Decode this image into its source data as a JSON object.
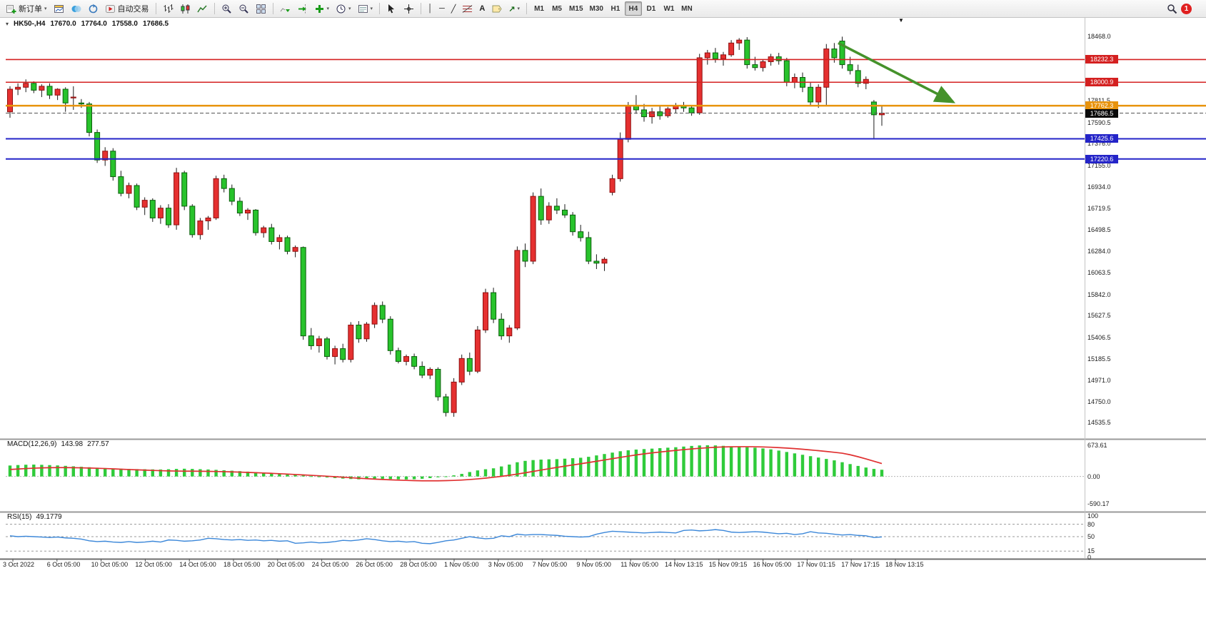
{
  "toolbar": {
    "new_order_label": "新订单",
    "auto_trading_label": "自动交易",
    "timeframes": [
      "M1",
      "M5",
      "M15",
      "M30",
      "H1",
      "H4",
      "D1",
      "W1",
      "MN"
    ],
    "active_timeframe": "H4",
    "notification_count": "1"
  },
  "icons": {
    "dropdown_caret": "▾",
    "scroll_marker": "▼",
    "collapse_caret": "▾",
    "vline_tool": "│",
    "hline_tool": "─",
    "trendline_tool": "╱",
    "text_tool": "A",
    "arrow_tool": "↗"
  },
  "symbol_header": {
    "symbol_period": "HK50-,H4",
    "open": "17670.0",
    "high": "17764.0",
    "low": "17558.0",
    "close": "17686.5"
  },
  "indicators": {
    "macd": {
      "name": "MACD(12,26,9)",
      "value_main": "143.98",
      "value_signal": "277.57"
    },
    "rsi": {
      "name": "RSI(15)",
      "value": "49.1779"
    }
  },
  "colors": {
    "bull": "#e53030",
    "bear": "#28c32c",
    "wick": "#1b1b1b",
    "macd_hist": "#2fcb3a",
    "macd_signal": "#e03030",
    "rsi_line": "#3b87d9",
    "arrow_green": "#45922b"
  },
  "chart_data": [
    {
      "type": "candlestick",
      "symbol": "HK50-",
      "period": "H4",
      "color_convention": "red = up, green = down",
      "last_bar": {
        "open": 17670.0,
        "high": 17764.0,
        "low": 17558.0,
        "close": 17686.5
      },
      "y_axis_ticks": [
        "18468.0",
        "17811.5",
        "17590.5",
        "17376.0",
        "17155.0",
        "16934.0",
        "16719.5",
        "16498.5",
        "16284.0",
        "16063.5",
        "15842.0",
        "15627.5",
        "15406.5",
        "15185.5",
        "14971.0",
        "14750.0",
        "14535.5"
      ],
      "price_lines": [
        {
          "label": "18232.3",
          "price": 18232.3,
          "line_color": "#d42020",
          "badge_bg": "#d42020",
          "width": 1.6,
          "dashed": false
        },
        {
          "label": "18000.9",
          "price": 18000.9,
          "line_color": "#d42020",
          "badge_bg": "#d42020",
          "width": 1.6,
          "dashed": false
        },
        {
          "label": "17762.3",
          "price": 17762.3,
          "line_color": "#e8930c",
          "badge_bg": "#e8930c",
          "width": 2.4,
          "dashed": false
        },
        {
          "label": "17686.5",
          "price": 17686.5,
          "line_color": "#555555",
          "badge_bg": "#0a0a0a",
          "width": 1,
          "dashed": true
        },
        {
          "label": "17425.6",
          "price": 17425.6,
          "line_color": "#2424c8",
          "badge_bg": "#2424c8",
          "width": 2,
          "dashed": false
        },
        {
          "label": "17220.6",
          "price": 17220.6,
          "line_color": "#2424c8",
          "badge_bg": "#2424c8",
          "width": 2,
          "dashed": false
        }
      ],
      "x_labels": [
        "3 Oct 2022",
        "6 Oct 05:00",
        "10 Oct 05:00",
        "12 Oct 05:00",
        "14 Oct 05:00",
        "18 Oct 05:00",
        "20 Oct 05:00",
        "24 Oct 05:00",
        "26 Oct 05:00",
        "28 Oct 05:00",
        "1 Nov 05:00",
        "3 Nov 05:00",
        "7 Nov 05:00",
        "9 Nov 05:00",
        "11 Nov 05:00",
        "14 Nov 13:15",
        "15 Nov 09:15",
        "16 Nov 05:00",
        "17 Nov 01:15",
        "17 Nov 17:15",
        "18 Nov 13:15"
      ],
      "candles": [
        [
          17700,
          17960,
          17640,
          17930
        ],
        [
          17930,
          17990,
          17870,
          17950
        ],
        [
          17950,
          18030,
          17900,
          17990
        ],
        [
          17990,
          18010,
          17890,
          17920
        ],
        [
          17920,
          17980,
          17850,
          17960
        ],
        [
          17960,
          17990,
          17830,
          17870
        ],
        [
          17870,
          17940,
          17820,
          17930
        ],
        [
          17930,
          17950,
          17700,
          17790
        ],
        [
          17850,
          17960,
          17720,
          17850
        ],
        [
          17790,
          17830,
          17740,
          17780
        ],
        [
          17780,
          17800,
          17450,
          17490
        ],
        [
          17490,
          17520,
          17180,
          17210
        ],
        [
          17210,
          17340,
          17150,
          17300
        ],
        [
          17300,
          17330,
          17000,
          17040
        ],
        [
          17040,
          17100,
          16840,
          16870
        ],
        [
          16870,
          16980,
          16820,
          16950
        ],
        [
          16950,
          16970,
          16700,
          16730
        ],
        [
          16730,
          16830,
          16650,
          16800
        ],
        [
          16800,
          16820,
          16580,
          16620
        ],
        [
          16620,
          16750,
          16560,
          16720
        ],
        [
          16720,
          16760,
          16520,
          16550
        ],
        [
          16550,
          17130,
          16500,
          17080
        ],
        [
          17080,
          17100,
          16700,
          16740
        ],
        [
          16740,
          16760,
          16420,
          16450
        ],
        [
          16450,
          16620,
          16400,
          16590
        ],
        [
          16590,
          16640,
          16500,
          16620
        ],
        [
          16620,
          17050,
          16600,
          17020
        ],
        [
          17020,
          17060,
          16880,
          16920
        ],
        [
          16920,
          16960,
          16750,
          16790
        ],
        [
          16790,
          16830,
          16640,
          16670
        ],
        [
          16670,
          16720,
          16600,
          16700
        ],
        [
          16700,
          16710,
          16440,
          16470
        ],
        [
          16470,
          16540,
          16420,
          16520
        ],
        [
          16520,
          16560,
          16350,
          16380
        ],
        [
          16380,
          16450,
          16300,
          16420
        ],
        [
          16420,
          16440,
          16250,
          16280
        ],
        [
          16280,
          16340,
          16220,
          16320
        ],
        [
          16320,
          16330,
          15380,
          15420
        ],
        [
          15420,
          15500,
          15280,
          15320
        ],
        [
          15320,
          15420,
          15250,
          15390
        ],
        [
          15390,
          15410,
          15180,
          15210
        ],
        [
          15210,
          15320,
          15130,
          15290
        ],
        [
          15290,
          15340,
          15150,
          15180
        ],
        [
          15180,
          15560,
          15150,
          15530
        ],
        [
          15530,
          15570,
          15350,
          15390
        ],
        [
          15390,
          15560,
          15360,
          15540
        ],
        [
          15540,
          15760,
          15500,
          15730
        ],
        [
          15730,
          15770,
          15550,
          15590
        ],
        [
          15590,
          15620,
          15230,
          15270
        ],
        [
          15270,
          15300,
          15140,
          15160
        ],
        [
          15160,
          15230,
          15120,
          15210
        ],
        [
          15210,
          15240,
          15080,
          15110
        ],
        [
          15110,
          15160,
          14990,
          15020
        ],
        [
          15020,
          15100,
          14980,
          15080
        ],
        [
          15080,
          15100,
          14760,
          14800
        ],
        [
          14800,
          14830,
          14600,
          14640
        ],
        [
          14640,
          14990,
          14597,
          14950
        ],
        [
          14950,
          15230,
          14920,
          15190
        ],
        [
          15190,
          15250,
          15020,
          15060
        ],
        [
          15060,
          15520,
          15040,
          15480
        ],
        [
          15480,
          15900,
          15450,
          15860
        ],
        [
          15860,
          15910,
          15550,
          15590
        ],
        [
          15590,
          15650,
          15380,
          15420
        ],
        [
          15420,
          15530,
          15350,
          15500
        ],
        [
          15500,
          16330,
          15480,
          16290
        ],
        [
          16290,
          16360,
          16120,
          16180
        ],
        [
          16180,
          16880,
          16150,
          16840
        ],
        [
          16840,
          16920,
          16550,
          16600
        ],
        [
          16600,
          16780,
          16560,
          16740
        ],
        [
          16740,
          16820,
          16660,
          16700
        ],
        [
          16700,
          16760,
          16620,
          16650
        ],
        [
          16650,
          16680,
          16440,
          16480
        ],
        [
          16480,
          16550,
          16380,
          16420
        ],
        [
          16420,
          16480,
          16150,
          16180
        ],
        [
          16180,
          16250,
          16100,
          16160
        ],
        [
          16160,
          16220,
          16080,
          16200
        ],
        [
          16880,
          17060,
          16850,
          17020
        ],
        [
          17020,
          17490,
          16990,
          17420
        ],
        [
          17420,
          17800,
          17390,
          17760
        ],
        [
          17760,
          17870,
          17680,
          17720
        ],
        [
          17720,
          17780,
          17600,
          17650
        ],
        [
          17650,
          17740,
          17580,
          17700
        ],
        [
          17700,
          17760,
          17620,
          17660
        ],
        [
          17660,
          17750,
          17640,
          17730
        ],
        [
          17730,
          17790,
          17690,
          17760
        ],
        [
          17760,
          17800,
          17700,
          17740
        ],
        [
          17740,
          17770,
          17660,
          17690
        ],
        [
          17690,
          18290,
          17670,
          18250
        ],
        [
          18250,
          18330,
          18180,
          18300
        ],
        [
          18300,
          18350,
          18200,
          18240
        ],
        [
          18240,
          18310,
          18170,
          18280
        ],
        [
          18280,
          18430,
          18260,
          18400
        ],
        [
          18400,
          18450,
          18330,
          18430
        ],
        [
          18430,
          18460,
          18140,
          18180
        ],
        [
          18180,
          18260,
          18120,
          18150
        ],
        [
          18150,
          18230,
          18110,
          18210
        ],
        [
          18210,
          18290,
          18170,
          18260
        ],
        [
          18260,
          18300,
          18180,
          18220
        ],
        [
          18220,
          18250,
          17960,
          18000
        ],
        [
          18000,
          18090,
          17940,
          18050
        ],
        [
          18050,
          18100,
          17900,
          17950
        ],
        [
          17950,
          18000,
          17760,
          17800
        ],
        [
          17800,
          17980,
          17740,
          17950
        ],
        [
          17950,
          18390,
          17770,
          18340
        ],
        [
          18340,
          18400,
          18200,
          18250
        ],
        [
          18420,
          18465,
          18140,
          18180
        ],
        [
          18180,
          18260,
          18080,
          18120
        ],
        [
          18120,
          18180,
          17950,
          17990
        ],
        [
          17990,
          18060,
          17930,
          18030
        ],
        [
          17800,
          17820,
          17425,
          17670
        ],
        [
          17670,
          17764,
          17558,
          17686.5
        ]
      ],
      "annotations": [
        {
          "type": "arrow",
          "color": "#45922b",
          "from": {
            "index": 104.5,
            "price": 18400
          },
          "to": {
            "index": 119,
            "price": 17800
          }
        }
      ]
    },
    {
      "type": "bar",
      "name": "MACD(12,26,9)",
      "main_value": 143.98,
      "signal_value": 277.57,
      "y_ticks": [
        "673.61",
        "0.00",
        "-590.17"
      ],
      "hist": [
        235,
        245,
        252,
        255,
        250,
        244,
        237,
        228,
        218,
        208,
        198,
        188,
        180,
        172,
        166,
        162,
        158,
        155,
        152,
        150,
        155,
        162,
        166,
        162,
        156,
        150,
        142,
        133,
        124,
        114,
        104,
        94,
        84,
        74,
        64,
        52,
        38,
        22,
        6,
        -8,
        -22,
        -35,
        -46,
        -55,
        -62,
        -55,
        -46,
        -50,
        -56,
        -62,
        -66,
        -60,
        -50,
        -36,
        -18,
        2,
        24,
        55,
        95,
        130,
        155,
        175,
        215,
        255,
        305,
        335,
        352,
        362,
        368,
        372,
        382,
        392,
        402,
        422,
        452,
        482,
        512,
        542,
        562,
        578,
        588,
        598,
        608,
        618,
        628,
        642,
        656,
        666,
        670,
        667,
        658,
        648,
        638,
        628,
        618,
        602,
        582,
        556,
        526,
        496,
        466,
        436,
        406,
        376,
        346,
        306,
        266,
        226,
        192,
        162,
        143.98
      ],
      "signal": [
        150,
        160,
        170,
        178,
        184,
        188,
        190,
        190,
        188,
        185,
        181,
        176,
        170,
        163,
        156,
        149,
        142,
        136,
        130,
        124,
        119,
        116,
        114,
        113,
        112,
        110,
        107,
        103,
        98,
        93,
        87,
        81,
        74,
        67,
        59,
        51,
        42,
        33,
        24,
        15,
        5,
        -5,
        -16,
        -27,
        -38,
        -48,
        -57,
        -65,
        -72,
        -79,
        -85,
        -90,
        -93,
        -94,
        -93,
        -90,
        -85,
        -77,
        -66,
        -52,
        -36,
        -18,
        2,
        25,
        51,
        79,
        108,
        137,
        166,
        194,
        221,
        247,
        273,
        299,
        326,
        354,
        382,
        410,
        437,
        462,
        485,
        506,
        525,
        543,
        560,
        576,
        591,
        605,
        617,
        627,
        634,
        638,
        640,
        640,
        638,
        634,
        628,
        620,
        610,
        598,
        585,
        570,
        554,
        537,
        519,
        500,
        466,
        424,
        377,
        327,
        277.57
      ]
    },
    {
      "type": "line",
      "name": "RSI(15)",
      "value": 49.1779,
      "levels": [
        80,
        50,
        15
      ],
      "y_ticks": [
        "100",
        "80",
        "50",
        "15",
        "0"
      ],
      "values": [
        52,
        50,
        51,
        50,
        49,
        48,
        49,
        47,
        46,
        44,
        40,
        38,
        39,
        37,
        36,
        38,
        36,
        37,
        39,
        37,
        42,
        41,
        39,
        40,
        42,
        46,
        45,
        43,
        42,
        43,
        41,
        42,
        40,
        41,
        39,
        40,
        34,
        35,
        37,
        35,
        36,
        38,
        41,
        40,
        42,
        45,
        43,
        40,
        38,
        39,
        37,
        38,
        34,
        33,
        36,
        40,
        42,
        46,
        50,
        47,
        45,
        46,
        52,
        50,
        56,
        54,
        55,
        55,
        54,
        53,
        51,
        50,
        49,
        50,
        56,
        60,
        63,
        62,
        61,
        60,
        59,
        60,
        61,
        60,
        59,
        65,
        66,
        64,
        65,
        67,
        65,
        61,
        60,
        61,
        62,
        61,
        59,
        57,
        58,
        55,
        57,
        62,
        59,
        58,
        56,
        54,
        55,
        53,
        52,
        48,
        49.18
      ]
    }
  ]
}
